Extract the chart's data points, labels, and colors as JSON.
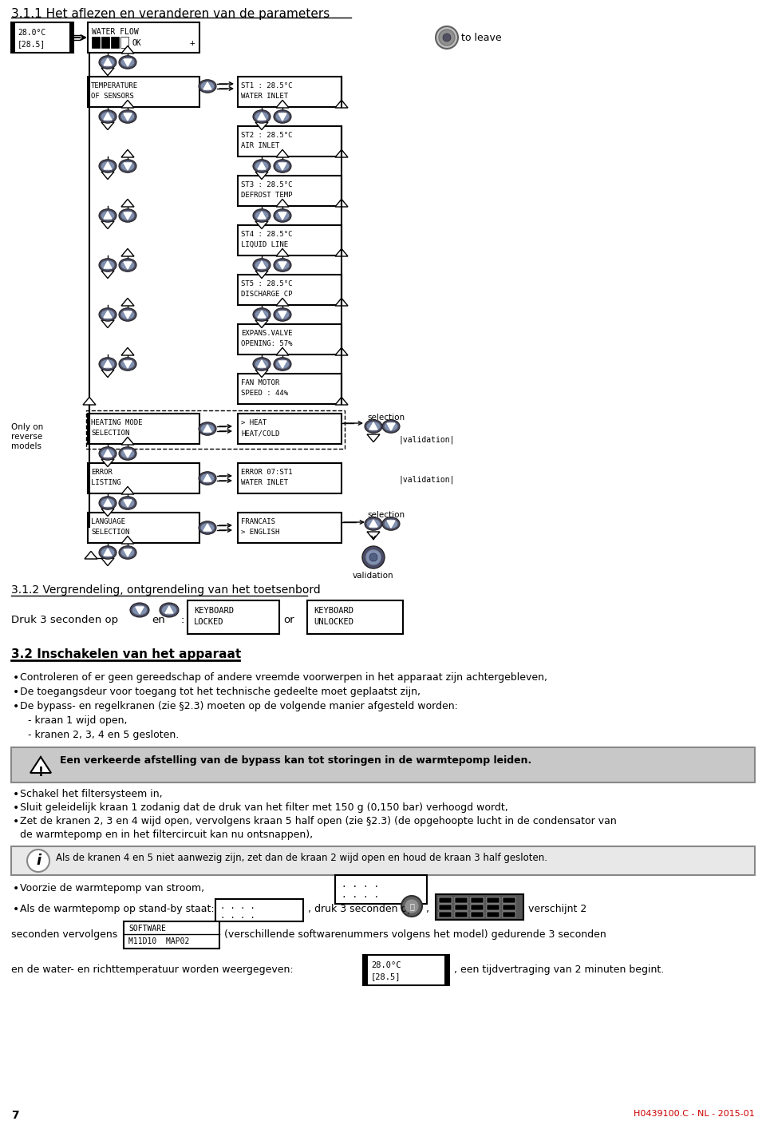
{
  "title_311": "3.1.1 Het aflezen en veranderen van de parameters",
  "title_312": "3.1.2 Vergrendeling, ontgrendeling van het toetsenbord",
  "title_32": "3.2 Inschakelen van het apparaat",
  "bg_color": "#ffffff",
  "warning_bg": "#cccccc",
  "info_bg": "#e8e8e8",
  "page_number": "7",
  "footer": "H0439100.C - NL - 2015-01",
  "bullet_1": "Controleren of er geen gereedschap of andere vreemde voorwerpen in het apparaat zijn achtergebleven,",
  "bullet_2": "De toegangsdeur voor toegang tot het technische gedeelte moet geplaatst zijn,",
  "bullet_3": "De bypass- en regelkranen (zie §2.3) moeten op de volgende manier afgesteld worden:",
  "sub1": "- kraan 1 wijd open,",
  "sub2": "- kranen 2, 3, 4 en 5 gesloten.",
  "warn_text": "Een verkeerde afstelling van de bypass kan tot storingen in de warmtepomp leiden.",
  "b2_1": "Schakel het filtersysteem in,",
  "b2_2": "Sluit geleidelijk kraan 1 zodanig dat de druk van het filter met 150 g (0,150 bar) verhoogd wordt,",
  "b2_3a": "Zet de kranen 2, 3 en 4 wijd open, vervolgens kraan 5 half open (zie §2.3) (de opgehoopte lucht in de condensator van",
  "b2_3b": "de warmtepomp en in het filtercircuit kan nu ontsnappen),",
  "info_text": "Als de kranen 4 en 5 niet aanwezig zijn, zet dan de kraan 2 wijd open en houd de kraan 3 half gesloten.",
  "b3_1": "Voorzie de warmtepomp van stroom,",
  "b3_2a": "Als de warmtepomp op stand-by staat:",
  "b3_2b": ", druk 3 seconden op",
  "b3_2c": ",",
  "b3_2d": "verschijnt 2",
  "sw_line1": "SOFTWARE",
  "sw_line2": "M11D10  MAP02",
  "sec_line1": "seconden vervolgens",
  "sec_line2": "(verschillende softwarenummers volgens het model) gedurende 3 seconden",
  "temp_line1": "en de water- en richttemperatuur worden weergegeven:",
  "temp_line2": ", een tijdvertraging van 2 minuten begint."
}
